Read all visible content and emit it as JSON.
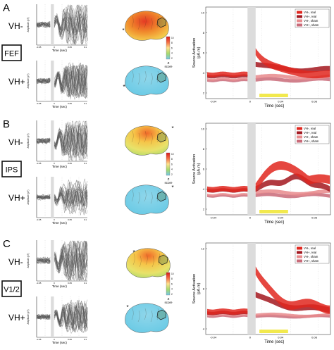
{
  "figure": {
    "panels": [
      {
        "letter": "A",
        "region": "FEF",
        "rows": [
          "VH-",
          "VH+"
        ],
        "butterfly": {
          "ylabel": "Amplitude (pT)",
          "xlabel": "Time (sec)",
          "xticks": [
            "-0.05",
            "0",
            "0.05",
            "0.1"
          ]
        },
        "colorbar": {
          "ticks": [
            "10",
            "8",
            "6",
            "4",
            "2"
          ],
          "label_line1": "Z",
          "label_line2": "score"
        },
        "source": {
          "ylabel_line1": "Source Activation",
          "ylabel_line2": "(pA-m)",
          "xlabel": "Time (sec)",
          "yticks": [
            "10",
            "8",
            "6",
            "4",
            "2"
          ],
          "xticks": [
            "-0.04",
            "0",
            "0.04",
            "0.08"
          ],
          "legend": [
            "VH-, real",
            "VH+, real",
            "VH-, sham",
            "VH+, sham"
          ]
        }
      },
      {
        "letter": "B",
        "region": "IPS",
        "rows": [
          "VH-",
          "VH+"
        ],
        "butterfly": {
          "ylabel": "Amplitude (pT)",
          "xlabel": "Time (sec)",
          "xticks": [
            "-0.05",
            "0",
            "0.05",
            "0.1"
          ]
        },
        "colorbar": {
          "ticks": [
            "10",
            "8",
            "6",
            "4",
            "2"
          ],
          "label_line1": "Z",
          "label_line2": "score"
        },
        "source": {
          "ylabel_line1": "Source Activation",
          "ylabel_line2": "(pA-m)",
          "xlabel": "Time (sec)",
          "yticks": [
            "10",
            "8",
            "6",
            "4",
            "2"
          ],
          "xticks": [
            "-0.04",
            "0",
            "0.04",
            "0.08"
          ],
          "legend": [
            "VH-, real",
            "VH+, real",
            "VH-, sham",
            "VH+, sham"
          ]
        }
      },
      {
        "letter": "C",
        "region": "V1/2",
        "rows": [
          "VH-",
          "VH+"
        ],
        "butterfly": {
          "ylabel": "Amplitude (pT)",
          "xlabel": "Time (sec)",
          "xticks": [
            "-0.05",
            "0",
            "0.05",
            "0.1"
          ]
        },
        "colorbar": {
          "ticks": [
            "10",
            "8",
            "6",
            "4",
            "2"
          ],
          "label_line1": "Z",
          "label_line2": "score"
        },
        "source": {
          "ylabel_line1": "Source Activation",
          "ylabel_line2": "(pA-m)",
          "xlabel": "Time (sec)",
          "yticks": [
            "12",
            "8",
            "4"
          ],
          "xticks": [
            "-0.04",
            "0",
            "0.04",
            "0.08"
          ],
          "legend": [
            "VH-, real",
            "VH+, real",
            "VH-, sham",
            "VH+, sham"
          ]
        }
      }
    ],
    "colors": {
      "vh_minus_real": "#e0271f",
      "vh_plus_real": "#a3171f",
      "vh_minus_sham": "#e88a8c",
      "vh_plus_sham": "#c96a78",
      "stim_artifact": "#dcdcdc",
      "highlight": "#f2e94e"
    }
  }
}
